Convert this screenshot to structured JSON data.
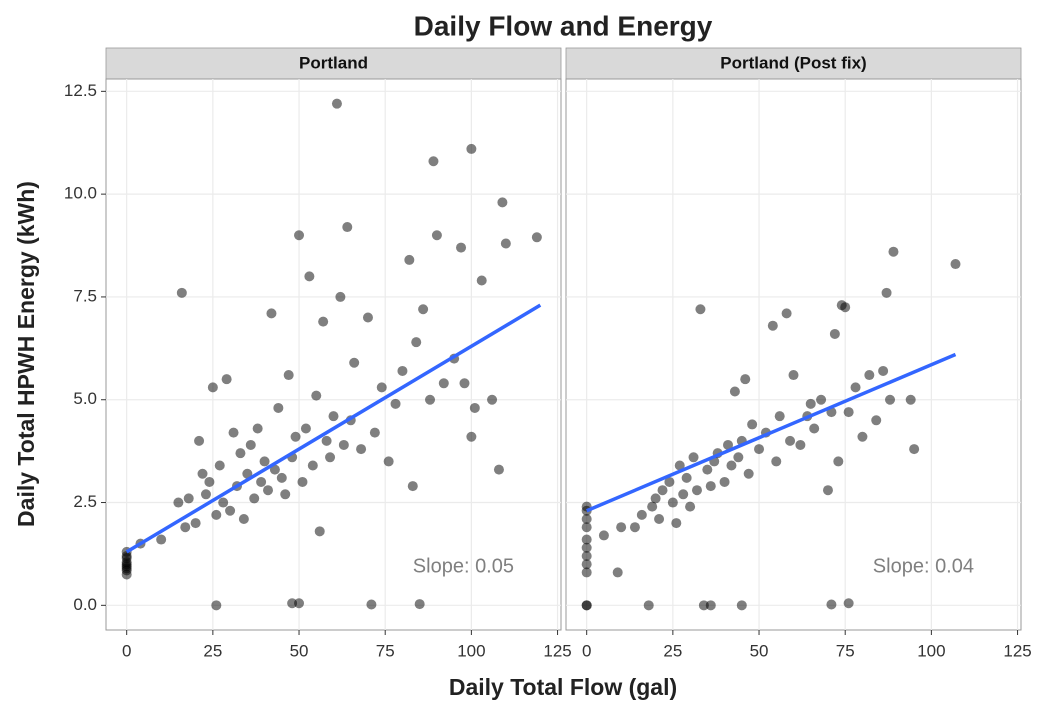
{
  "title": "Daily Flow and Energy",
  "x_label": "Daily Total Flow (gal)",
  "y_label": "Daily Total HPWH Energy (kWh)",
  "chart_data": [
    {
      "type": "scatter",
      "panel_title": "Portland",
      "color": "#000000",
      "grid": true,
      "xlim": [
        -6,
        126
      ],
      "xticks": [
        0,
        25,
        50,
        75,
        100,
        125
      ],
      "ylim": [
        -0.6,
        12.8
      ],
      "yticks": [
        {
          "value": 0,
          "label": "0.0"
        },
        2.5,
        {
          "value": 5,
          "label": "5.0"
        },
        7.5,
        {
          "value": 10,
          "label": "10.0"
        },
        12.5
      ],
      "x": [
        0,
        0,
        0,
        0,
        0,
        0,
        0,
        0,
        0,
        4,
        10,
        15,
        16,
        17,
        18,
        20,
        21,
        22,
        23,
        24,
        25,
        26,
        26,
        27,
        28,
        29,
        30,
        31,
        32,
        33,
        34,
        35,
        36,
        37,
        38,
        39,
        40,
        41,
        42,
        43,
        44,
        45,
        46,
        47,
        48,
        48,
        49,
        50,
        50,
        51,
        52,
        53,
        54,
        55,
        56,
        57,
        58,
        59,
        60,
        61,
        62,
        63,
        64,
        65,
        66,
        68,
        70,
        71,
        72,
        74,
        76,
        78,
        80,
        82,
        83,
        84,
        85,
        86,
        88,
        89,
        90,
        92,
        95,
        97,
        98,
        100,
        100,
        101,
        103,
        106,
        108,
        109,
        110,
        119
      ],
      "values": [
        0.75,
        0.85,
        0.95,
        1.05,
        1.15,
        1.2,
        1.3,
        1.0,
        0.9,
        1.5,
        1.6,
        2.5,
        7.6,
        1.9,
        2.6,
        2.0,
        4.0,
        3.2,
        2.7,
        3.0,
        5.3,
        0,
        2.2,
        3.4,
        2.5,
        5.5,
        2.3,
        4.2,
        2.9,
        3.7,
        2.1,
        3.2,
        3.9,
        2.6,
        4.3,
        3.0,
        3.5,
        2.8,
        7.1,
        3.3,
        4.8,
        3.1,
        2.7,
        5.6,
        0.05,
        3.6,
        4.1,
        9.0,
        0.05,
        3.0,
        4.3,
        8.0,
        3.4,
        5.1,
        1.8,
        6.9,
        4.0,
        3.6,
        4.6,
        12.2,
        7.5,
        3.9,
        9.2,
        4.5,
        5.9,
        3.8,
        7.0,
        0.02,
        4.2,
        5.3,
        3.5,
        4.9,
        5.7,
        8.4,
        2.9,
        6.4,
        0.03,
        7.2,
        5.0,
        10.8,
        9.0,
        5.4,
        6.0,
        8.7,
        5.4,
        11.1,
        4.1,
        4.8,
        7.9,
        5.0,
        3.3,
        9.8,
        8.8,
        8.95
      ],
      "fit": {
        "color": "#3366ff",
        "x": [
          0,
          120
        ],
        "values": [
          1.3,
          7.3
        ]
      },
      "annotation": "Slope: 0.05"
    },
    {
      "type": "scatter",
      "panel_title": "Portland (Post fix)",
      "color": "#000000",
      "grid": true,
      "xlim": [
        -6,
        126
      ],
      "xticks": [
        0,
        25,
        50,
        75,
        100,
        125
      ],
      "ylim": [
        -0.6,
        12.8
      ],
      "yticks": [
        0,
        2.5,
        5,
        7.5,
        10,
        12.5
      ],
      "x": [
        0,
        0,
        0,
        0,
        0,
        0,
        0,
        0,
        0,
        0,
        0,
        5,
        9,
        10,
        14,
        16,
        18,
        19,
        20,
        21,
        22,
        24,
        25,
        26,
        27,
        28,
        29,
        30,
        31,
        32,
        33,
        34,
        35,
        36,
        36,
        37,
        38,
        40,
        41,
        42,
        43,
        44,
        45,
        45,
        46,
        47,
        48,
        50,
        52,
        54,
        55,
        56,
        58,
        59,
        60,
        62,
        64,
        65,
        66,
        68,
        70,
        71,
        72,
        73,
        74,
        75,
        76,
        76,
        71,
        78,
        80,
        82,
        84,
        86,
        87,
        88,
        89,
        94,
        95,
        107
      ],
      "values": [
        0,
        0,
        1.0,
        1.2,
        1.4,
        1.6,
        1.9,
        2.1,
        2.3,
        2.4,
        0.8,
        1.7,
        0.8,
        1.9,
        1.9,
        2.2,
        0,
        2.4,
        2.6,
        2.1,
        2.8,
        3.0,
        2.5,
        2.0,
        3.4,
        2.7,
        3.1,
        2.4,
        3.6,
        2.8,
        7.2,
        0,
        3.3,
        0,
        2.9,
        3.5,
        3.7,
        3.0,
        3.9,
        3.4,
        5.2,
        3.6,
        0,
        4.0,
        5.5,
        3.2,
        4.4,
        3.8,
        4.2,
        6.8,
        3.5,
        4.6,
        7.1,
        4.0,
        5.6,
        3.9,
        4.6,
        4.9,
        4.3,
        5.0,
        2.8,
        4.7,
        6.6,
        3.5,
        7.3,
        7.25,
        4.7,
        0.05,
        0.02,
        5.3,
        4.1,
        5.6,
        4.5,
        5.7,
        7.6,
        5.0,
        8.6,
        5.0,
        3.8,
        8.3
      ],
      "fit": {
        "color": "#3366ff",
        "x": [
          0,
          107
        ],
        "values": [
          2.3,
          6.1
        ]
      },
      "annotation": "Slope: 0.04"
    }
  ]
}
